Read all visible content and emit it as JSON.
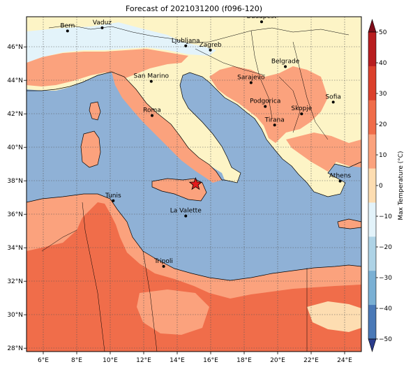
{
  "title": "Forecast of 2021031200 (f096-120)",
  "colorbar": {
    "label": "Max Temperature (°C)",
    "ticks": [
      "50",
      "40",
      "30",
      "20",
      "10",
      "0",
      "−10",
      "−20",
      "−30",
      "−40",
      "−50"
    ],
    "colors": [
      "#7f0d1a",
      "#b81d1f",
      "#db402c",
      "#f06d4a",
      "#fba27d",
      "#fdddb1",
      "#e3f3fa",
      "#aed3e6",
      "#7ab0d4",
      "#4a79b7",
      "#2a3c8c"
    ]
  },
  "axes": {
    "lon_ticks": [
      "6°E",
      "8°E",
      "10°E",
      "12°E",
      "14°E",
      "16°E",
      "18°E",
      "20°E",
      "22°E",
      "24°E"
    ],
    "lat_ticks": [
      "46°N",
      "44°N",
      "42°N",
      "40°N",
      "38°N",
      "36°N",
      "34°N",
      "32°N",
      "30°N",
      "28°N"
    ],
    "lon_range": [
      5,
      25
    ],
    "lat_range": [
      27.8,
      47.8
    ],
    "grid": true
  },
  "marker": {
    "type": "star",
    "lon": 15.1,
    "lat": 37.8,
    "color": "#e31a1c"
  },
  "cities": [
    {
      "name": "Bern",
      "lon": 7.45,
      "lat": 46.95
    },
    {
      "name": "Vaduz",
      "lon": 9.52,
      "lat": 47.14
    },
    {
      "name": "Budapest",
      "lon": 19.04,
      "lat": 47.5
    },
    {
      "name": "Ljubljana",
      "lon": 14.51,
      "lat": 46.06
    },
    {
      "name": "Zagreb",
      "lon": 15.98,
      "lat": 45.81
    },
    {
      "name": "Belgrade",
      "lon": 20.46,
      "lat": 44.82
    },
    {
      "name": "Sarajevo",
      "lon": 18.41,
      "lat": 43.86
    },
    {
      "name": "San Marino",
      "lon": 12.45,
      "lat": 43.94
    },
    {
      "name": "Sofia",
      "lon": 23.32,
      "lat": 42.7
    },
    {
      "name": "Podgorica",
      "lon": 19.26,
      "lat": 42.44
    },
    {
      "name": "Skopje",
      "lon": 21.43,
      "lat": 42.0
    },
    {
      "name": "Roma",
      "lon": 12.5,
      "lat": 41.9
    },
    {
      "name": "Tirana",
      "lon": 19.82,
      "lat": 41.33
    },
    {
      "name": "Athens",
      "lon": 23.73,
      "lat": 37.98
    },
    {
      "name": "Tunis",
      "lon": 10.18,
      "lat": 36.81
    },
    {
      "name": "La Valette",
      "lon": 14.51,
      "lat": 35.9
    },
    {
      "name": "Tripoli",
      "lon": 13.19,
      "lat": 32.89
    }
  ]
}
